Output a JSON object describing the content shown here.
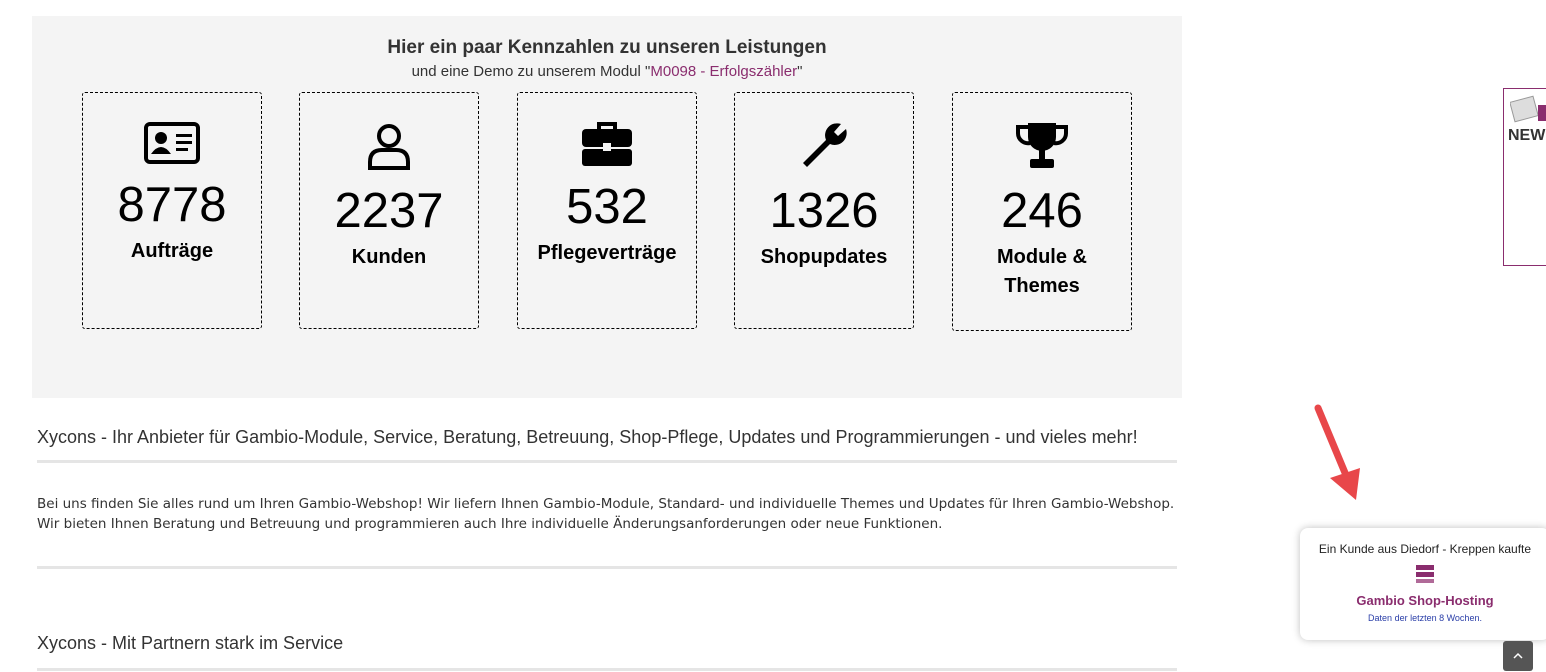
{
  "stats": {
    "title": "Hier ein paar Kennzahlen zu unseren Leistungen",
    "subtitle_prefix": "und eine Demo zu unserem Modul \"",
    "subtitle_link": "M0098 - Erfolgszähler",
    "subtitle_suffix": "\"",
    "items": [
      {
        "number": 8778,
        "label": "Aufträge"
      },
      {
        "number": 2237,
        "label": "Kunden"
      },
      {
        "number": 532,
        "label": "Pflegeverträge"
      },
      {
        "number": 1326,
        "label": "Shopupdates"
      },
      {
        "number": 246,
        "label": "Module & Themes"
      }
    ]
  },
  "sections": [
    {
      "heading": "Xycons - Ihr Anbieter für Gambio-Module, Service, Beratung, Betreuung, Shop-Pflege, Updates und Programmierungen - und vieles mehr!",
      "paragraphs": [
        "Bei uns finden Sie alles rund um Ihren Gambio-Webshop! Wir liefern Ihnen Gambio-Module, Standard- und individuelle Themes und Updates für Ihren Gambio-Webshop.",
        "Wir bieten Ihnen Beratung und Betreuung und programmieren auch Ihre individuelle Änderungsanforderungen oder neue Funktionen."
      ]
    },
    {
      "heading": "Xycons - Mit Partnern stark im Service"
    }
  ],
  "side_banner": {
    "label": "NEW"
  },
  "popup": {
    "text": "Ein Kunde aus Diedorf - Kreppen kaufte",
    "product": "Gambio Shop-Hosting",
    "note": "Daten der letzten 8 Wochen."
  }
}
